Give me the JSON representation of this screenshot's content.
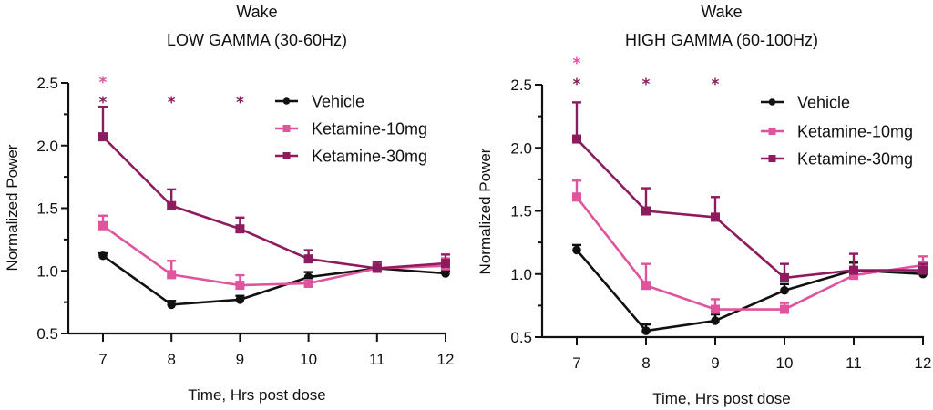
{
  "colors": {
    "Vehicle": "#111111",
    "Ketamine-10mg": "#E0539D",
    "Ketamine-30mg": "#8C1C5E"
  },
  "chart_data": [
    {
      "type": "line",
      "title_line1": "Wake",
      "title_line2": "LOW GAMMA (30-60Hz)",
      "xlabel": "Time, Hrs post dose",
      "ylabel": "Normalized Power",
      "x": [
        7,
        8,
        9,
        10,
        11,
        12
      ],
      "xticks": [
        "7",
        "8",
        "9",
        "10",
        "11",
        "12"
      ],
      "yticks": [
        "0.5",
        "1.0",
        "1.5",
        "2.0",
        "2.5"
      ],
      "ylim": [
        0.5,
        2.5
      ],
      "grid": false,
      "legend_position": "top-right",
      "series": [
        {
          "name": "Vehicle",
          "marker": "circle",
          "values": [
            1.12,
            0.73,
            0.77,
            0.95,
            1.02,
            0.98
          ],
          "error": [
            0.02,
            0.03,
            0.03,
            0.04,
            0.03,
            0.02
          ]
        },
        {
          "name": "Ketamine-10mg",
          "marker": "square",
          "values": [
            1.36,
            0.97,
            0.885,
            0.9,
            1.02,
            1.04
          ],
          "error": [
            0.08,
            0.11,
            0.08,
            0.02,
            0.05,
            0.06
          ]
        },
        {
          "name": "Ketamine-30mg",
          "marker": "square",
          "values": [
            2.07,
            1.52,
            1.335,
            1.095,
            1.02,
            1.06
          ],
          "error": [
            0.24,
            0.13,
            0.09,
            0.07,
            0.05,
            0.07
          ]
        }
      ],
      "significance": [
        {
          "x": 7,
          "series": "Ketamine-10mg",
          "label": "*",
          "row": 2
        },
        {
          "x": 7,
          "series": "Ketamine-30mg",
          "label": "*",
          "row": 1
        },
        {
          "x": 8,
          "series": "Ketamine-30mg",
          "label": "*",
          "row": 1
        },
        {
          "x": 9,
          "series": "Ketamine-30mg",
          "label": "*",
          "row": 1
        }
      ]
    },
    {
      "type": "line",
      "title_line1": "Wake",
      "title_line2": "HIGH GAMMA (60-100Hz)",
      "xlabel": "Time, Hrs post dose",
      "ylabel": "Normalized Power",
      "x": [
        7,
        8,
        9,
        10,
        11,
        12
      ],
      "xticks": [
        "7",
        "8",
        "9",
        "10",
        "11",
        "12"
      ],
      "yticks": [
        "0.5",
        "1.0",
        "1.5",
        "2.0",
        "2.5"
      ],
      "ylim": [
        0.5,
        2.5
      ],
      "grid": false,
      "legend_position": "top-right",
      "series": [
        {
          "name": "Vehicle",
          "marker": "circle",
          "values": [
            1.19,
            0.55,
            0.63,
            0.87,
            1.03,
            1.0
          ],
          "error": [
            0.04,
            0.05,
            0.05,
            0.05,
            0.06,
            0.03
          ]
        },
        {
          "name": "Ketamine-10mg",
          "marker": "square",
          "values": [
            1.61,
            0.91,
            0.72,
            0.72,
            0.99,
            1.07
          ],
          "error": [
            0.13,
            0.17,
            0.08,
            0.05,
            0.05,
            0.07
          ]
        },
        {
          "name": "Ketamine-30mg",
          "marker": "square",
          "values": [
            2.07,
            1.5,
            1.45,
            0.97,
            1.03,
            1.03
          ],
          "error": [
            0.29,
            0.18,
            0.16,
            0.11,
            0.13,
            0.05
          ]
        }
      ],
      "significance": [
        {
          "x": 7,
          "series": "Ketamine-10mg",
          "label": "*",
          "row": 2
        },
        {
          "x": 7,
          "series": "Ketamine-30mg",
          "label": "*",
          "row": 1
        },
        {
          "x": 8,
          "series": "Ketamine-30mg",
          "label": "*",
          "row": 1
        },
        {
          "x": 9,
          "series": "Ketamine-30mg",
          "label": "*",
          "row": 1
        }
      ]
    }
  ]
}
